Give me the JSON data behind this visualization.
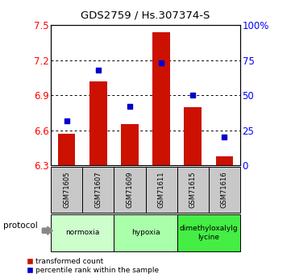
{
  "title": "GDS2759 / Hs.307374-S",
  "samples": [
    "GSM71605",
    "GSM71607",
    "GSM71609",
    "GSM71611",
    "GSM71615",
    "GSM71616"
  ],
  "transformed_counts": [
    6.57,
    7.02,
    6.65,
    7.44,
    6.8,
    6.38
  ],
  "percentile_ranks": [
    32,
    68,
    42,
    73,
    50,
    20
  ],
  "y_min": 6.3,
  "y_max": 7.5,
  "y_ticks": [
    6.3,
    6.6,
    6.9,
    7.2,
    7.5
  ],
  "right_y_ticks": [
    0,
    25,
    50,
    75,
    100
  ],
  "right_y_labels": [
    "0",
    "25",
    "50",
    "75",
    "100%"
  ],
  "bar_color": "#cc1100",
  "dot_color": "#0000cc",
  "protocols": [
    {
      "label": "normoxia",
      "samples": [
        0,
        1
      ],
      "color": "#ccffcc"
    },
    {
      "label": "hypoxia",
      "samples": [
        2,
        3
      ],
      "color": "#aaffaa"
    },
    {
      "label": "dimethyloxalylg\nlycine",
      "samples": [
        4,
        5
      ],
      "color": "#44ee44"
    }
  ],
  "legend_items": [
    {
      "label": "transformed count",
      "color": "#cc1100"
    },
    {
      "label": "percentile rank within the sample",
      "color": "#0000cc"
    }
  ],
  "xlabel_protocol": "protocol",
  "sample_box_color": "#c8c8c8",
  "base_value": 6.3
}
